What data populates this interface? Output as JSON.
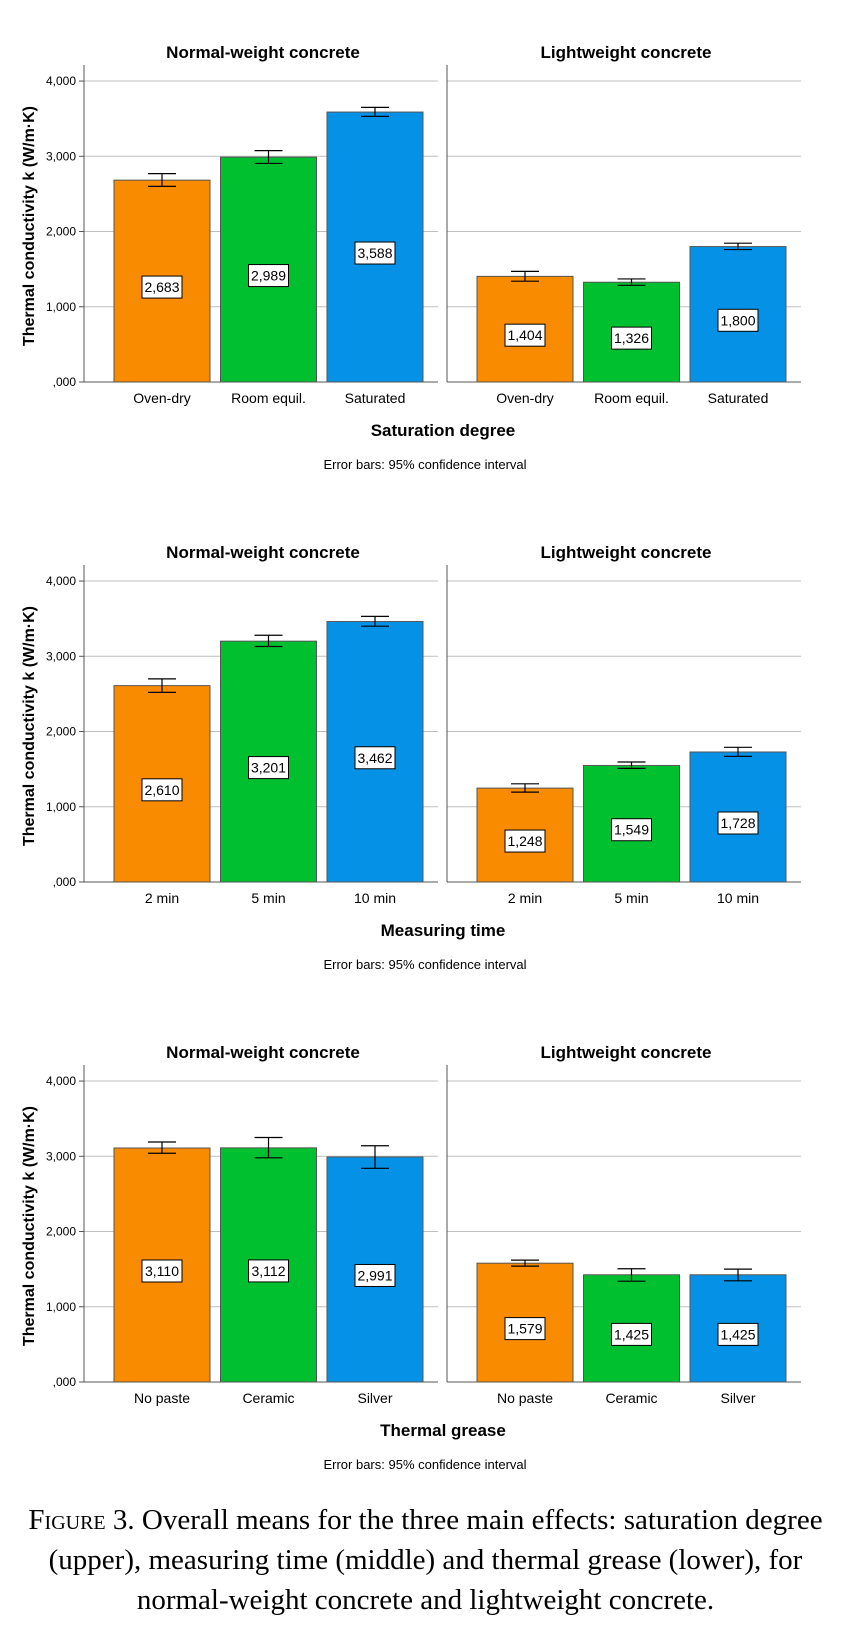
{
  "chart_data": [
    {
      "type": "bar",
      "panels": [
        {
          "title": "Normal-weight concrete",
          "categories": [
            "Oven-dry",
            "Room equil.",
            "Saturated"
          ],
          "values": [
            2683,
            2989,
            3588
          ],
          "value_labels": [
            "2,683",
            "2,989",
            "3,588"
          ],
          "ci": [
            [
              2600,
              2770
            ],
            [
              2905,
              3075
            ],
            [
              3530,
              3650
            ]
          ]
        },
        {
          "title": "Lightweight concrete",
          "categories": [
            "Oven-dry",
            "Room equil.",
            "Saturated"
          ],
          "values": [
            1404,
            1326,
            1800
          ],
          "value_labels": [
            "1,404",
            "1,326",
            "1,800"
          ],
          "ci": [
            [
              1340,
              1470
            ],
            [
              1285,
              1370
            ],
            [
              1760,
              1845
            ]
          ]
        }
      ],
      "xlabel": "Saturation degree",
      "ylabel": "Thermal conductivity k (W/m·K)",
      "yticks": [
        0,
        1000,
        2000,
        3000,
        4000
      ],
      "ytick_labels": [
        ",000",
        "1,000",
        "2,000",
        "3,000",
        "4,000"
      ],
      "ylim": [
        0,
        4200
      ],
      "note": "Error bars: 95% confidence interval",
      "grid": true
    },
    {
      "type": "bar",
      "panels": [
        {
          "title": "Normal-weight concrete",
          "categories": [
            "2 min",
            "5 min",
            "10 min"
          ],
          "values": [
            2610,
            3201,
            3462
          ],
          "value_labels": [
            "2,610",
            "3,201",
            "3,462"
          ],
          "ci": [
            [
              2520,
              2700
            ],
            [
              3130,
              3280
            ],
            [
              3400,
              3530
            ]
          ]
        },
        {
          "title": "Lightweight concrete",
          "categories": [
            "2 min",
            "5 min",
            "10 min"
          ],
          "values": [
            1248,
            1549,
            1728
          ],
          "value_labels": [
            "1,248",
            "1,549",
            "1,728"
          ],
          "ci": [
            [
              1195,
              1305
            ],
            [
              1510,
              1595
            ],
            [
              1670,
              1790
            ]
          ]
        }
      ],
      "xlabel": "Measuring time",
      "ylabel": "Thermal conductivity k (W/m·K)",
      "yticks": [
        0,
        1000,
        2000,
        3000,
        4000
      ],
      "ytick_labels": [
        ",000",
        "1,000",
        "2,000",
        "3,000",
        "4,000"
      ],
      "ylim": [
        0,
        4200
      ],
      "note": "Error bars: 95% confidence interval",
      "grid": true
    },
    {
      "type": "bar",
      "panels": [
        {
          "title": "Normal-weight concrete",
          "categories": [
            "No paste",
            "Ceramic",
            "Silver"
          ],
          "values": [
            3110,
            3112,
            2991
          ],
          "value_labels": [
            "3,110",
            "3,112",
            "2,991"
          ],
          "ci": [
            [
              3040,
              3190
            ],
            [
              2980,
              3250
            ],
            [
              2840,
              3140
            ]
          ]
        },
        {
          "title": "Lightweight concrete",
          "categories": [
            "No paste",
            "Ceramic",
            "Silver"
          ],
          "values": [
            1579,
            1425,
            1425
          ],
          "value_labels": [
            "1,579",
            "1,425",
            "1,425"
          ],
          "ci": [
            [
              1540,
              1620
            ],
            [
              1340,
              1505
            ],
            [
              1345,
              1500
            ]
          ]
        }
      ],
      "xlabel": "Thermal grease",
      "ylabel": "Thermal conductivity k (W/m·K)",
      "yticks": [
        0,
        1000,
        2000,
        3000,
        4000
      ],
      "ytick_labels": [
        ",000",
        "1,000",
        "2,000",
        "3,000",
        "4,000"
      ],
      "ylim": [
        0,
        4200
      ],
      "note": "Error bars: 95% confidence interval",
      "grid": true
    }
  ],
  "colors": {
    "bars": [
      "#F98B00",
      "#00C02F",
      "#0592E6"
    ],
    "bar_outline": "#555555",
    "grid": "#BFBFBF",
    "axis": "#555555",
    "text": "#000000"
  },
  "caption": {
    "label": "Figure 3.",
    "text": "Overall means for the three main effects: saturation degree (upper), measuring time (middle) and thermal grease (lower), for normal-weight concrete and lightweight concrete."
  }
}
